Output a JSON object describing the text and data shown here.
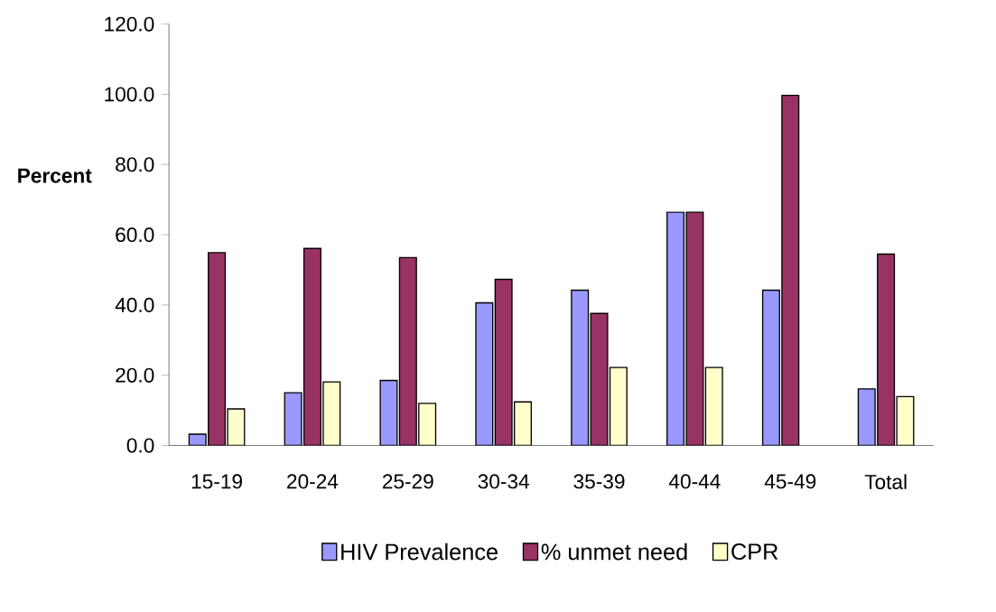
{
  "chart_data": {
    "type": "bar",
    "ylabel": "Percent",
    "categories": [
      "15-19",
      "20-24",
      "25-29",
      "30-34",
      "35-39",
      "40-44",
      "45-49",
      "Total"
    ],
    "series": [
      {
        "name": "HIV Prevalence",
        "color": "#9999ff",
        "values": [
          3.2,
          15.0,
          18.5,
          40.6,
          44.2,
          66.4,
          44.2,
          16.1
        ]
      },
      {
        "name": "% unmet need",
        "color": "#993366",
        "values": [
          54.9,
          56.1,
          53.5,
          47.3,
          37.6,
          66.4,
          99.7,
          54.5
        ]
      },
      {
        "name": "CPR",
        "color": "#ffffcc",
        "values": [
          10.4,
          18.1,
          12.0,
          12.4,
          22.2,
          22.2,
          null,
          13.9
        ]
      }
    ],
    "ylim": [
      0,
      120
    ],
    "yticks": [
      {
        "value": 0,
        "label": "0.0"
      },
      {
        "value": 20,
        "label": "20.0"
      },
      {
        "value": 40,
        "label": "40.0"
      },
      {
        "value": 60,
        "label": "60.0"
      },
      {
        "value": 80,
        "label": "80.0"
      },
      {
        "value": 100,
        "label": "100.0"
      },
      {
        "value": 120,
        "label": "120.0"
      }
    ],
    "grid": false,
    "legend": "bottom"
  }
}
